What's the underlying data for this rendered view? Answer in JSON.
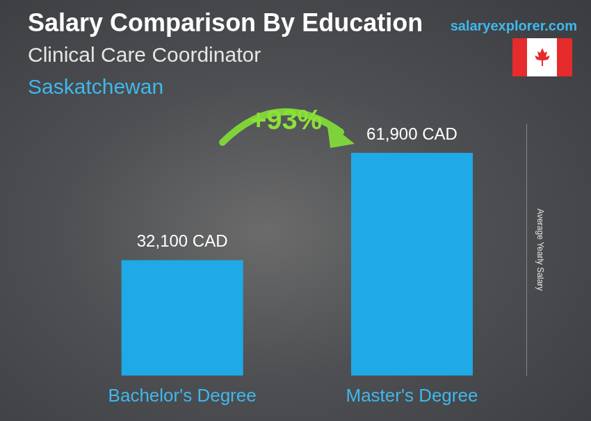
{
  "chart_data": {
    "type": "bar",
    "title": "Salary Comparison By Education",
    "subtitle": "Clinical Care Coordinator",
    "subtitle_2": "Saskatchewan",
    "source": "salaryexplorer.com",
    "annotation": "+93%",
    "y_label": "Average Yearly Salary",
    "categories": [
      "Bachelor's Degree",
      "Master's Degree"
    ],
    "values": [
      32100,
      61900
    ],
    "value_labels": [
      "32,100 CAD",
      "61,900 CAD"
    ],
    "color": "#1fa9e6",
    "ylim": [
      0,
      70000
    ],
    "yticks": [],
    "grid": false,
    "data_labels": true,
    "tick_labels": "x"
  }
}
